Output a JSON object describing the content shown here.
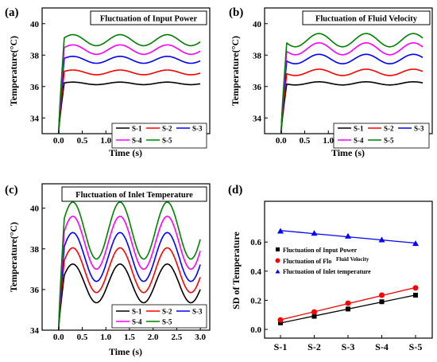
{
  "panels": [
    {
      "letter": "(a)",
      "title": "Fluctuation of Input Power",
      "ylabel": "Temperature(°C)",
      "xlabel": "Time (s)",
      "xticks": [
        "0.0",
        "0.5",
        "1.0",
        "1.5",
        "2.0",
        "2.5",
        "3.0"
      ],
      "yticks": [
        "34",
        "36",
        "38",
        "40"
      ],
      "legend": [
        "S-1",
        "S-2",
        "S-3",
        "S-4",
        "S-5"
      ]
    },
    {
      "letter": "(b)",
      "title": "Fluctuation of  Fluid Velocity",
      "ylabel": "Temperature(°C)",
      "xlabel": "Time (s)",
      "xticks": [
        "0.0",
        "0.5",
        "1.0",
        "1.5",
        "2.0",
        "2.5",
        "3.0"
      ],
      "yticks": [
        "34",
        "36",
        "38",
        "40"
      ],
      "legend": [
        "S-1",
        "S-2",
        "S-3",
        "S-4",
        "S-5"
      ]
    },
    {
      "letter": "(c)",
      "title": "Fluctuation of Inlet Temperature",
      "ylabel": "Temperature(°C)",
      "xlabel": "Time (s)",
      "xticks": [
        "0.0",
        "0.5",
        "1.0",
        "1.5",
        "2.0",
        "2.5",
        "3.0"
      ],
      "yticks": [
        "34",
        "36",
        "38",
        "40"
      ],
      "legend": [
        "S-1",
        "S-2",
        "S-3",
        "S-4",
        "S-5"
      ]
    },
    {
      "letter": "(d)",
      "title": "",
      "ylabel": "SD of Temperature",
      "xlabel": "",
      "xticks": [
        "S-1",
        "S-2",
        "S-3",
        "S-4",
        "S-5"
      ],
      "yticks": [
        "0.0",
        "0.2",
        "0.4",
        "0.6"
      ],
      "legend": [
        "Fluctuation of Input Power",
        "Fluctuation of Flo",
        "Fluid Velocity",
        "Fluctuation of Inlet temperature"
      ]
    }
  ],
  "chart_data": [
    {
      "type": "line",
      "title": "Fluctuation of Input Power",
      "xlabel": "Time (s)",
      "ylabel": "Temperature(°C)",
      "xlim": [
        -0.35,
        3.2
      ],
      "ylim": [
        33,
        41
      ],
      "legend_position": "bottom-right",
      "model": {
        "start": 33.0,
        "rise_end": 0.12,
        "period": 1.0,
        "peak_time": 0.3
      },
      "series": [
        {
          "name": "S-1",
          "color": "#000000",
          "mean": 36.2,
          "amplitude": 0.08,
          "peak_value": 36.25
        },
        {
          "name": "S-2",
          "color": "#ff0000",
          "mean": 36.9,
          "amplitude": 0.15,
          "peak_value": 37.1
        },
        {
          "name": "S-3",
          "color": "#0000ff",
          "mean": 37.7,
          "amplitude": 0.22,
          "peak_value": 38.05
        },
        {
          "name": "S-4",
          "color": "#ff00ff",
          "mean": 38.35,
          "amplitude": 0.3,
          "peak_value": 38.6
        },
        {
          "name": "S-5",
          "color": "#008000",
          "mean": 38.95,
          "amplitude": 0.35,
          "peak_value": 39.2
        }
      ]
    },
    {
      "type": "line",
      "title": "Fluctuation of  Fluid Velocity",
      "xlabel": "Time (s)",
      "ylabel": "Temperature(°C)",
      "xlim": [
        -0.35,
        3.2
      ],
      "ylim": [
        33,
        41
      ],
      "legend_position": "bottom-right",
      "model": {
        "start": 33.0,
        "rise_end": 0.12,
        "period": 1.0,
        "peak_time": 0.8
      },
      "series": [
        {
          "name": "S-1",
          "color": "#000000",
          "mean": 36.2,
          "amplitude": 0.1,
          "peak_value": 36.3
        },
        {
          "name": "S-2",
          "color": "#ff0000",
          "mean": 36.9,
          "amplitude": 0.2,
          "peak_value": 37.15
        },
        {
          "name": "S-3",
          "color": "#0000ff",
          "mean": 37.75,
          "amplitude": 0.3,
          "peak_value": 38.05
        },
        {
          "name": "S-4",
          "color": "#ff00ff",
          "mean": 38.4,
          "amplitude": 0.38,
          "peak_value": 38.85
        },
        {
          "name": "S-5",
          "color": "#008000",
          "mean": 38.95,
          "amplitude": 0.42,
          "peak_value": 39.35
        }
      ]
    },
    {
      "type": "line",
      "title": "Fluctuation of Inlet Temperature",
      "xlabel": "Time (s)",
      "ylabel": "Temperature(°C)",
      "xlim": [
        -0.35,
        3.2
      ],
      "ylim": [
        34,
        41.2
      ],
      "legend_position": "bottom-right",
      "model": {
        "start": 34.0,
        "rise_end": 0.12,
        "period": 1.0,
        "peak_time": 0.3
      },
      "series": [
        {
          "name": "S-1",
          "color": "#000000",
          "mean": 36.3,
          "amplitude": 0.95,
          "peak_value": 37.2
        },
        {
          "name": "S-2",
          "color": "#ff0000",
          "mean": 36.95,
          "amplitude": 1.1,
          "peak_value": 38.0
        },
        {
          "name": "S-3",
          "color": "#0000ff",
          "mean": 37.6,
          "amplitude": 1.2,
          "peak_value": 38.75
        },
        {
          "name": "S-4",
          "color": "#ff00ff",
          "mean": 38.3,
          "amplitude": 1.3,
          "peak_value": 39.5
        },
        {
          "name": "S-5",
          "color": "#008000",
          "mean": 38.9,
          "amplitude": 1.4,
          "peak_value": 40.2
        }
      ]
    },
    {
      "type": "scatter",
      "title": "",
      "xlabel": "",
      "ylabel": "SD of Temperature",
      "categories": [
        "S-1",
        "S-2",
        "S-3",
        "S-4",
        "S-5"
      ],
      "ylim": [
        -0.06,
        0.88
      ],
      "legend_position": "center-right",
      "fit_lines": true,
      "series": [
        {
          "name": "Fluctuation of Input Power",
          "color": "#000000",
          "marker": "square",
          "values": [
            0.045,
            0.09,
            0.14,
            0.19,
            0.235
          ]
        },
        {
          "name": "Fluctuation of Flo",
          "color": "#ff0000",
          "marker": "circle",
          "values": [
            0.065,
            0.12,
            0.18,
            0.235,
            0.285
          ]
        },
        {
          "name": "Fluctuation of Inlet temperature",
          "color": "#0000ff",
          "marker": "triangle",
          "values": [
            0.675,
            0.66,
            0.64,
            0.615,
            0.59
          ]
        }
      ]
    }
  ]
}
